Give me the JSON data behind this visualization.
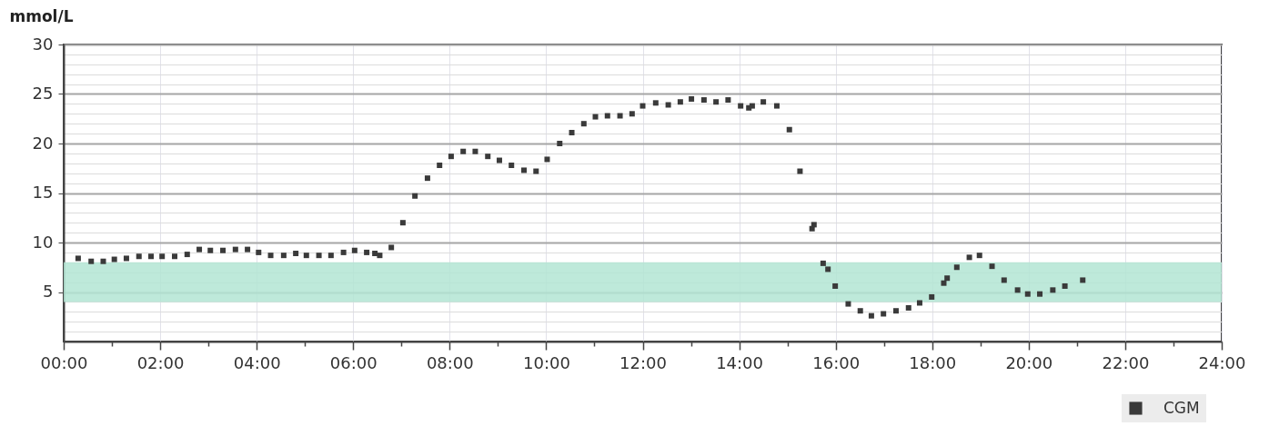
{
  "chart_data": {
    "type": "scatter",
    "ylabel": "mmol/L",
    "xlim": [
      0,
      24
    ],
    "ylim": [
      0,
      30
    ],
    "xticks": [
      {
        "value": 0,
        "label": "00:00"
      },
      {
        "value": 1,
        "label": null
      },
      {
        "value": 2,
        "label": "02:00"
      },
      {
        "value": 3,
        "label": null
      },
      {
        "value": 4,
        "label": "04:00"
      },
      {
        "value": 5,
        "label": null
      },
      {
        "value": 6,
        "label": "06:00"
      },
      {
        "value": 7,
        "label": null
      },
      {
        "value": 8,
        "label": "08:00"
      },
      {
        "value": 9,
        "label": null
      },
      {
        "value": 10,
        "label": "10:00"
      },
      {
        "value": 11,
        "label": null
      },
      {
        "value": 12,
        "label": "12:00"
      },
      {
        "value": 13,
        "label": null
      },
      {
        "value": 14,
        "label": "14:00"
      },
      {
        "value": 15,
        "label": null
      },
      {
        "value": 16,
        "label": "16:00"
      },
      {
        "value": 17,
        "label": null
      },
      {
        "value": 18,
        "label": "18:00"
      },
      {
        "value": 19,
        "label": null
      },
      {
        "value": 20,
        "label": "20:00"
      },
      {
        "value": 21,
        "label": null
      },
      {
        "value": 22,
        "label": "22:00"
      },
      {
        "value": 23,
        "label": null
      },
      {
        "value": 24,
        "label": "24:00"
      }
    ],
    "yticks": [
      {
        "value": 1,
        "label": null
      },
      {
        "value": 2,
        "label": null
      },
      {
        "value": 3,
        "label": null
      },
      {
        "value": 4,
        "label": null
      },
      5,
      {
        "value": 6,
        "label": null
      },
      {
        "value": 7,
        "label": null
      },
      {
        "value": 8,
        "label": null
      },
      {
        "value": 9,
        "label": null
      },
      10,
      {
        "value": 11,
        "label": null
      },
      {
        "value": 12,
        "label": null
      },
      {
        "value": 13,
        "label": null
      },
      {
        "value": 14,
        "label": null
      },
      15,
      {
        "value": 16,
        "label": null
      },
      {
        "value": 17,
        "label": null
      },
      {
        "value": 18,
        "label": null
      },
      {
        "value": 19,
        "label": null
      },
      20,
      {
        "value": 21,
        "label": null
      },
      {
        "value": 22,
        "label": null
      },
      {
        "value": 23,
        "label": null
      },
      {
        "value": 24,
        "label": null
      },
      25,
      {
        "value": 26,
        "label": null
      },
      {
        "value": 27,
        "label": null
      },
      {
        "value": 28,
        "label": null
      },
      {
        "value": 29,
        "label": null
      },
      30
    ],
    "grid": true,
    "legend": "bottom right",
    "marker": "square",
    "bands": [
      {
        "axis": "y",
        "from": 4,
        "to": 8,
        "color": "#b3e5d3"
      }
    ],
    "series": [
      {
        "name": "CGM",
        "color": "#3a3a3a",
        "x": [
          0.3,
          0.57,
          0.82,
          1.05,
          1.3,
          1.56,
          1.81,
          2.04,
          2.3,
          2.56,
          2.81,
          3.04,
          3.3,
          3.56,
          3.81,
          4.04,
          4.29,
          4.56,
          4.81,
          5.03,
          5.29,
          5.54,
          5.8,
          6.03,
          6.28,
          6.45,
          6.55,
          6.79,
          7.03,
          7.28,
          7.54,
          7.79,
          8.03,
          8.28,
          8.53,
          8.79,
          9.03,
          9.28,
          9.54,
          9.79,
          10.02,
          10.28,
          10.53,
          10.78,
          11.02,
          11.27,
          11.53,
          11.78,
          12.0,
          12.27,
          12.53,
          12.78,
          13.01,
          13.27,
          13.52,
          13.77,
          14.03,
          14.2,
          14.27,
          14.5,
          14.78,
          15.04,
          15.26,
          15.51,
          15.55,
          15.74,
          15.84,
          15.99,
          16.26,
          16.51,
          16.74,
          16.99,
          17.25,
          17.51,
          17.74,
          17.99,
          18.24,
          18.31,
          18.51,
          18.77,
          18.98,
          19.24,
          19.49,
          19.77,
          19.98,
          20.23,
          20.5,
          20.75,
          21.12
        ],
        "values": [
          8.4,
          8.1,
          8.1,
          8.3,
          8.4,
          8.6,
          8.6,
          8.6,
          8.6,
          8.8,
          9.3,
          9.2,
          9.2,
          9.3,
          9.3,
          9.0,
          8.7,
          8.7,
          8.9,
          8.7,
          8.7,
          8.7,
          9.0,
          9.2,
          9.0,
          8.9,
          8.7,
          9.5,
          12.0,
          14.7,
          16.5,
          17.8,
          18.7,
          19.2,
          19.2,
          18.7,
          18.3,
          17.8,
          17.3,
          17.2,
          18.4,
          20.0,
          21.1,
          22.0,
          22.7,
          22.8,
          22.8,
          23.0,
          23.8,
          24.1,
          23.9,
          24.2,
          24.5,
          24.4,
          24.2,
          24.4,
          23.8,
          23.6,
          23.8,
          24.2,
          23.8,
          21.4,
          17.2,
          11.4,
          11.8,
          7.9,
          7.3,
          5.6,
          3.8,
          3.1,
          2.6,
          2.8,
          3.1,
          3.4,
          3.9,
          4.5,
          5.9,
          6.4,
          7.5,
          8.5,
          8.7,
          7.6,
          6.2,
          5.2,
          4.8,
          4.8,
          5.2,
          5.6,
          6.2
        ]
      }
    ]
  }
}
